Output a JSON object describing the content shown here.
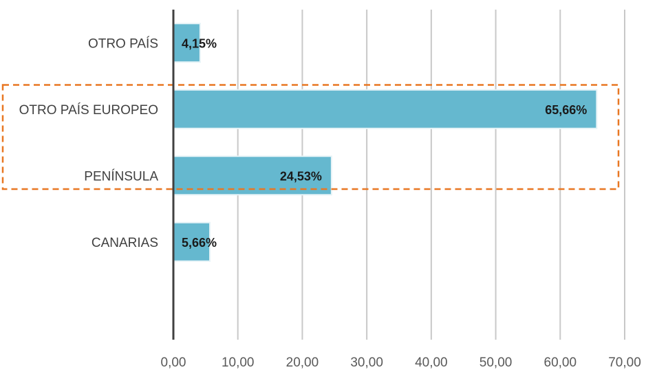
{
  "chart_data": {
    "type": "bar",
    "orientation": "horizontal",
    "categories": [
      "OTRO PAÍS",
      "OTRO PAÍS EUROPEO",
      "PENÍNSULA",
      "CANARIAS"
    ],
    "values": [
      4.15,
      65.66,
      24.53,
      5.66
    ],
    "data_labels": [
      "4,15%",
      "65,66%",
      "24,53%",
      "5,66%"
    ],
    "xlim": [
      0,
      70
    ],
    "xticks": [
      0,
      10,
      20,
      30,
      40,
      50,
      60,
      70
    ],
    "xtick_labels": [
      "0,00",
      "10,00",
      "20,00",
      "30,00",
      "40,00",
      "50,00",
      "60,00",
      "70,00"
    ],
    "title": "",
    "xlabel": "",
    "ylabel": "",
    "grid": true,
    "legend": "none",
    "bar_color": "#65b8cf",
    "highlight": {
      "category": "OTRO PAÍS EUROPEO",
      "style": "dashed-box",
      "color": "#e87722"
    }
  }
}
